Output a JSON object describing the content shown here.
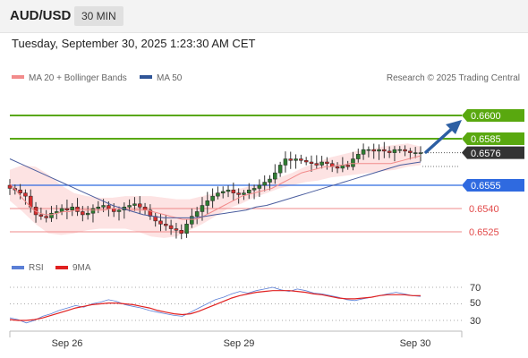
{
  "header": {
    "symbol": "AUD/USD",
    "timeframe": "30 MIN"
  },
  "datetime": "Tuesday, September 30, 2025 1:23:30 AM CET",
  "legend": {
    "ma20_label": "MA 20 + Bollinger Bands",
    "ma50_label": "MA 50",
    "rsi_label": "RSI",
    "rsi_ma_label": "9MA",
    "credit": "Research © 2025 Trading Central"
  },
  "colors": {
    "green_level": "#59a80f",
    "blue_level": "#2f6ae0",
    "red_level": "#ef8a8a",
    "bull_candle": "#2e7d32",
    "bear_candle": "#d32f2f",
    "ma20": "#f28b8b",
    "ma50": "#4a5d9e",
    "bands": "#fde3e3",
    "arrow": "#2d5fa3",
    "rsi": "#5b7fd6",
    "rsi_ma": "#e02020",
    "last_price_bg": "#333333"
  },
  "chart_data": [
    {
      "type": "candlestick",
      "instrument": "AUD/USD",
      "timeframe": "30 MIN",
      "x_ticks": [
        "Sep 26",
        "Sep 29",
        "Sep 30"
      ],
      "ylim": [
        0.6515,
        0.661
      ],
      "levels": [
        {
          "value": "0.6600",
          "kind": "resistance"
        },
        {
          "value": "0.6585",
          "kind": "resistance"
        },
        {
          "value": "0.6555",
          "kind": "pivot"
        },
        {
          "value": "0.6540",
          "kind": "support"
        },
        {
          "value": "0.6525",
          "kind": "support"
        }
      ],
      "last_price": "0.6576",
      "forecast_target": 0.66,
      "closes": [
        0.6553,
        0.6552,
        0.655,
        0.6548,
        0.6541,
        0.6536,
        0.6535,
        0.6534,
        0.6537,
        0.6538,
        0.654,
        0.6539,
        0.6541,
        0.6538,
        0.6536,
        0.6537,
        0.654,
        0.6541,
        0.6542,
        0.654,
        0.6538,
        0.6539,
        0.6541,
        0.6542,
        0.6543,
        0.6541,
        0.6539,
        0.6535,
        0.6532,
        0.653,
        0.6529,
        0.6527,
        0.6526,
        0.6524,
        0.653,
        0.6535,
        0.6538,
        0.6542,
        0.6545,
        0.6548,
        0.655,
        0.6551,
        0.6552,
        0.655,
        0.6549,
        0.655,
        0.6552,
        0.6553,
        0.6555,
        0.6557,
        0.6559,
        0.6563,
        0.6568,
        0.6572,
        0.6571,
        0.6572,
        0.6571,
        0.657,
        0.6569,
        0.6568,
        0.657,
        0.6569,
        0.6567,
        0.6566,
        0.6568,
        0.6567,
        0.6572,
        0.6575,
        0.6578,
        0.6578,
        0.6577,
        0.6578,
        0.6577,
        0.6576,
        0.6578,
        0.6578,
        0.6577,
        0.6576,
        0.6576,
        0.6576
      ],
      "ma20": [
        0.6556,
        0.6552,
        0.6547,
        0.6543,
        0.6539,
        0.6537,
        0.6536,
        0.6536,
        0.6537,
        0.6538,
        0.6538,
        0.6539,
        0.6539,
        0.6539,
        0.6539,
        0.6539,
        0.6539,
        0.654,
        0.654,
        0.654,
        0.6539,
        0.6539,
        0.6539,
        0.6539,
        0.6538,
        0.6537,
        0.6536,
        0.6535,
        0.6534,
        0.6533,
        0.6533,
        0.6533,
        0.6534,
        0.6536,
        0.6538,
        0.654,
        0.6542,
        0.6544,
        0.6546,
        0.6548,
        0.6549,
        0.655,
        0.6551,
        0.6552,
        0.6553,
        0.6555,
        0.6557,
        0.6559,
        0.6561,
        0.6563,
        0.6564,
        0.6565,
        0.6566,
        0.6567,
        0.6567,
        0.6568,
        0.6568,
        0.6569,
        0.6569,
        0.6569,
        0.6569,
        0.6569,
        0.6569,
        0.6569,
        0.6569,
        0.657,
        0.6571,
        0.6572,
        0.6573,
        0.6574
      ],
      "ma50": [
        0.6572,
        0.6569,
        0.6566,
        0.6563,
        0.656,
        0.6557,
        0.6554,
        0.6551,
        0.6548,
        0.6545,
        0.6542,
        0.654,
        0.6538,
        0.6536,
        0.6535,
        0.6534,
        0.6534,
        0.6534,
        0.6534,
        0.6535,
        0.6536,
        0.6537,
        0.6538,
        0.6539,
        0.6541,
        0.6542,
        0.6544,
        0.6546,
        0.6548,
        0.655,
        0.6552,
        0.6554,
        0.6556,
        0.6558,
        0.656,
        0.6562,
        0.6564,
        0.6566,
        0.6568,
        0.6569,
        0.657
      ],
      "band_upper": [
        0.6565,
        0.6568,
        0.6567,
        0.6562,
        0.6555,
        0.655,
        0.6548,
        0.6547,
        0.6547,
        0.6548,
        0.6548,
        0.6548,
        0.6547,
        0.6546,
        0.6546,
        0.6548,
        0.655,
        0.6552,
        0.6553,
        0.6555,
        0.6557,
        0.656,
        0.6563,
        0.6567,
        0.657,
        0.6573,
        0.6575,
        0.6577,
        0.6578,
        0.658,
        0.6581,
        0.6582,
        0.658
      ],
      "band_lower": [
        0.6545,
        0.6538,
        0.653,
        0.6524,
        0.6523,
        0.6524,
        0.6526,
        0.6527,
        0.6527,
        0.6527,
        0.6525,
        0.6522,
        0.6521,
        0.6522,
        0.6526,
        0.653,
        0.6535,
        0.654,
        0.6543,
        0.6547,
        0.655,
        0.6553,
        0.6555,
        0.6557,
        0.6558,
        0.656,
        0.6561,
        0.6562,
        0.6563,
        0.6564,
        0.6565,
        0.6567,
        0.6568
      ]
    },
    {
      "type": "line",
      "title": "RSI",
      "y_ticks": [
        "70",
        "50",
        "30"
      ],
      "ylim": [
        20,
        80
      ],
      "series": [
        {
          "name": "RSI",
          "values": [
            33,
            31,
            27,
            30,
            35,
            38,
            42,
            45,
            48,
            46,
            50,
            52,
            55,
            53,
            49,
            47,
            45,
            42,
            40,
            38,
            36,
            35,
            40,
            45,
            50,
            55,
            58,
            62,
            65,
            63,
            66,
            68,
            70,
            67,
            65,
            68,
            66,
            63,
            62,
            60,
            58,
            55,
            54,
            56,
            58,
            60,
            62,
            64,
            62,
            60,
            59
          ]
        },
        {
          "name": "9MA",
          "values": [
            31,
            30,
            30,
            31,
            33,
            36,
            39,
            42,
            45,
            47,
            49,
            50,
            51,
            51,
            50,
            49,
            47,
            45,
            42,
            40,
            38,
            37,
            38,
            41,
            45,
            49,
            53,
            57,
            60,
            62,
            64,
            65,
            66,
            66,
            66,
            65,
            64,
            62,
            61,
            59,
            57,
            56,
            56,
            57,
            58,
            60,
            61,
            61,
            61,
            60,
            60
          ]
        }
      ]
    }
  ]
}
